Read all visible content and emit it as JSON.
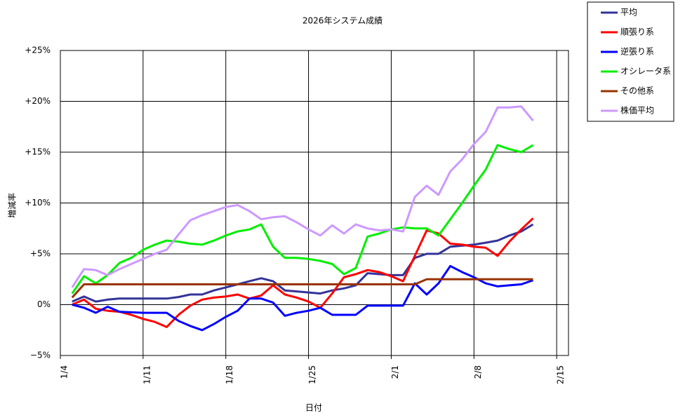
{
  "chart_data": {
    "type": "line",
    "title": "2026年システム成績",
    "x_label": "日付",
    "y_label": "増減率",
    "x": [
      "2026-01-05",
      "2026-01-06",
      "2026-01-07",
      "2026-01-08",
      "2026-01-09",
      "2026-01-10",
      "2026-01-11",
      "2026-01-12",
      "2026-01-13",
      "2026-01-14",
      "2026-01-15",
      "2026-01-16",
      "2026-01-17",
      "2026-01-18",
      "2026-01-19",
      "2026-01-20",
      "2026-01-21",
      "2026-01-22",
      "2026-01-23",
      "2026-01-24",
      "2026-01-25",
      "2026-01-26",
      "2026-01-27",
      "2026-01-28",
      "2026-01-29",
      "2026-01-30",
      "2026-01-31",
      "2026-02-01",
      "2026-02-02",
      "2026-02-03",
      "2026-02-04",
      "2026-02-05",
      "2026-02-06",
      "2026-02-07",
      "2026-02-08",
      "2026-02-09",
      "2026-02-10",
      "2026-02-11",
      "2026-02-12",
      "2026-02-13"
    ],
    "xlim": [
      "2026-01-04",
      "2026-02-16"
    ],
    "xticks": [
      {
        "value": "2026-01-04",
        "label": "1/4"
      },
      {
        "value": "2026-01-11",
        "label": "1/11"
      },
      {
        "value": "2026-01-18",
        "label": "1/18"
      },
      {
        "value": "2026-01-25",
        "label": "1/25"
      },
      {
        "value": "2026-02-01",
        "label": "2/1"
      },
      {
        "value": "2026-02-08",
        "label": "2/8"
      },
      {
        "value": "2026-02-15",
        "label": "2/15"
      }
    ],
    "ylim": [
      -5,
      25
    ],
    "yticks": [
      {
        "value": -5,
        "label": "−5%"
      },
      {
        "value": 0,
        "label": "0%"
      },
      {
        "value": 5,
        "label": "+5%"
      },
      {
        "value": 10,
        "label": "+10%"
      },
      {
        "value": 15,
        "label": "+15%"
      },
      {
        "value": 20,
        "label": "+20%"
      },
      {
        "value": 25,
        "label": "+25%"
      }
    ],
    "grid": true,
    "legend": "top-right-outside",
    "series": [
      {
        "name": "平均",
        "color": "#333399",
        "values": [
          0.3,
          0.8,
          0.3,
          0.5,
          0.6,
          0.6,
          0.6,
          0.6,
          0.6,
          0.75,
          1.0,
          1.0,
          1.4,
          1.7,
          2.0,
          2.3,
          2.6,
          2.3,
          1.4,
          1.3,
          1.2,
          1.1,
          1.4,
          1.6,
          1.9,
          3.1,
          3.0,
          2.9,
          2.9,
          4.6,
          5.0,
          5.0,
          5.7,
          5.8,
          5.9,
          6.1,
          6.3,
          6.8,
          7.2,
          7.9
        ]
      },
      {
        "name": "順張り系",
        "color": "#ff0000",
        "values": [
          0.0,
          0.5,
          -0.4,
          -0.6,
          -0.7,
          -1.0,
          -1.4,
          -1.7,
          -2.2,
          -1.0,
          -0.1,
          0.5,
          0.7,
          0.8,
          1.0,
          0.6,
          0.9,
          1.9,
          1.0,
          0.7,
          0.3,
          -0.3,
          1.1,
          2.7,
          3.0,
          3.4,
          3.2,
          2.8,
          2.3,
          4.8,
          7.3,
          7.0,
          6.0,
          5.9,
          5.7,
          5.6,
          4.8,
          6.2,
          7.4,
          8.5
        ]
      },
      {
        "name": "逆張り系",
        "color": "#0000ff",
        "values": [
          0.0,
          -0.3,
          -0.8,
          -0.2,
          -0.7,
          -0.75,
          -0.8,
          -0.8,
          -0.8,
          -1.6,
          -2.1,
          -2.5,
          -1.9,
          -1.2,
          -0.6,
          0.6,
          0.6,
          0.2,
          -1.1,
          -0.8,
          -0.6,
          -0.3,
          -1.0,
          -1.0,
          -1.0,
          -0.1,
          -0.1,
          -0.1,
          -0.1,
          2.1,
          1.0,
          2.1,
          3.8,
          3.2,
          2.7,
          2.1,
          1.8,
          1.9,
          2.0,
          2.4
        ]
      },
      {
        "name": "オシレータ系",
        "color": "#00ee00",
        "values": [
          1.1,
          2.8,
          2.1,
          2.9,
          4.1,
          4.6,
          5.4,
          5.9,
          6.3,
          6.2,
          6.0,
          5.9,
          6.3,
          6.8,
          7.2,
          7.4,
          7.9,
          5.7,
          4.6,
          4.6,
          4.5,
          4.3,
          4.0,
          3.0,
          3.6,
          6.7,
          7.0,
          7.4,
          7.6,
          7.5,
          7.5,
          6.8,
          8.4,
          10.0,
          11.7,
          13.3,
          15.7,
          15.3,
          15.0,
          15.7
        ]
      },
      {
        "name": "その他系",
        "color": "#993300",
        "values": [
          0.7,
          2.0,
          2.0,
          2.0,
          2.0,
          2.0,
          2.0,
          2.0,
          2.0,
          2.0,
          2.0,
          2.0,
          2.0,
          2.0,
          2.0,
          2.0,
          2.0,
          2.0,
          2.0,
          2.0,
          2.0,
          2.0,
          2.0,
          2.0,
          2.0,
          2.0,
          2.0,
          2.0,
          2.0,
          2.0,
          2.5,
          2.5,
          2.5,
          2.5,
          2.5,
          2.5,
          2.5,
          2.5,
          2.5,
          2.5
        ]
      },
      {
        "name": "株価平均",
        "color": "#cc99ff",
        "values": [
          1.7,
          3.5,
          3.4,
          2.9,
          3.5,
          4.0,
          4.5,
          5.0,
          5.4,
          6.9,
          8.3,
          8.8,
          9.2,
          9.6,
          9.8,
          9.2,
          8.4,
          8.6,
          8.7,
          8.1,
          7.4,
          6.8,
          7.8,
          7.0,
          7.9,
          7.5,
          7.3,
          7.4,
          7.2,
          10.6,
          11.7,
          10.8,
          13.1,
          14.3,
          15.8,
          17.0,
          19.4,
          19.4,
          19.5,
          18.1
        ]
      }
    ]
  }
}
